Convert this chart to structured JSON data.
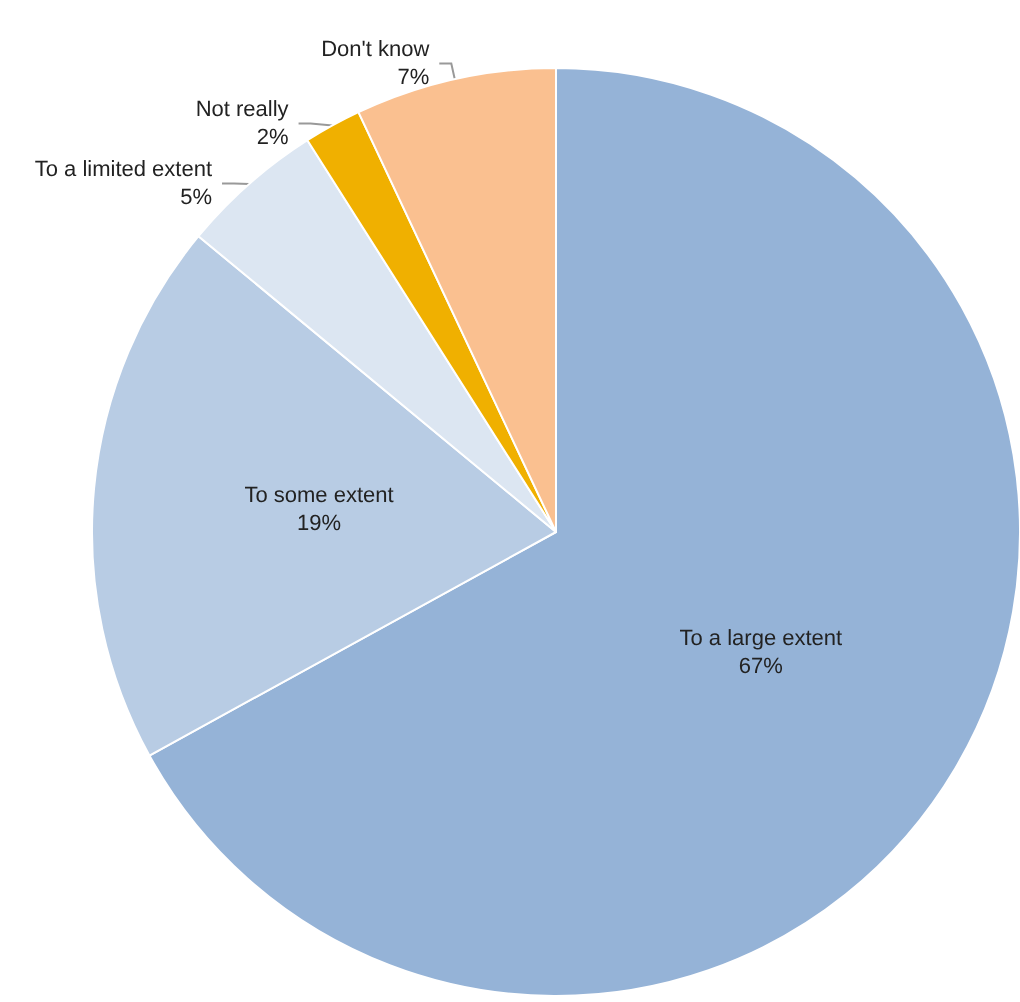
{
  "chart_data": {
    "type": "pie",
    "categories": [
      "To a large extent",
      "To some extent",
      "To a limited extent",
      "Not really",
      "Don't know"
    ],
    "values": [
      67,
      19,
      5,
      2,
      7
    ],
    "value_labels": [
      "67%",
      "19%",
      "5%",
      "2%",
      "7%"
    ],
    "colors": [
      "#95b3d7",
      "#b8cce4",
      "#dce6f2",
      "#f0b000",
      "#fac090"
    ]
  }
}
